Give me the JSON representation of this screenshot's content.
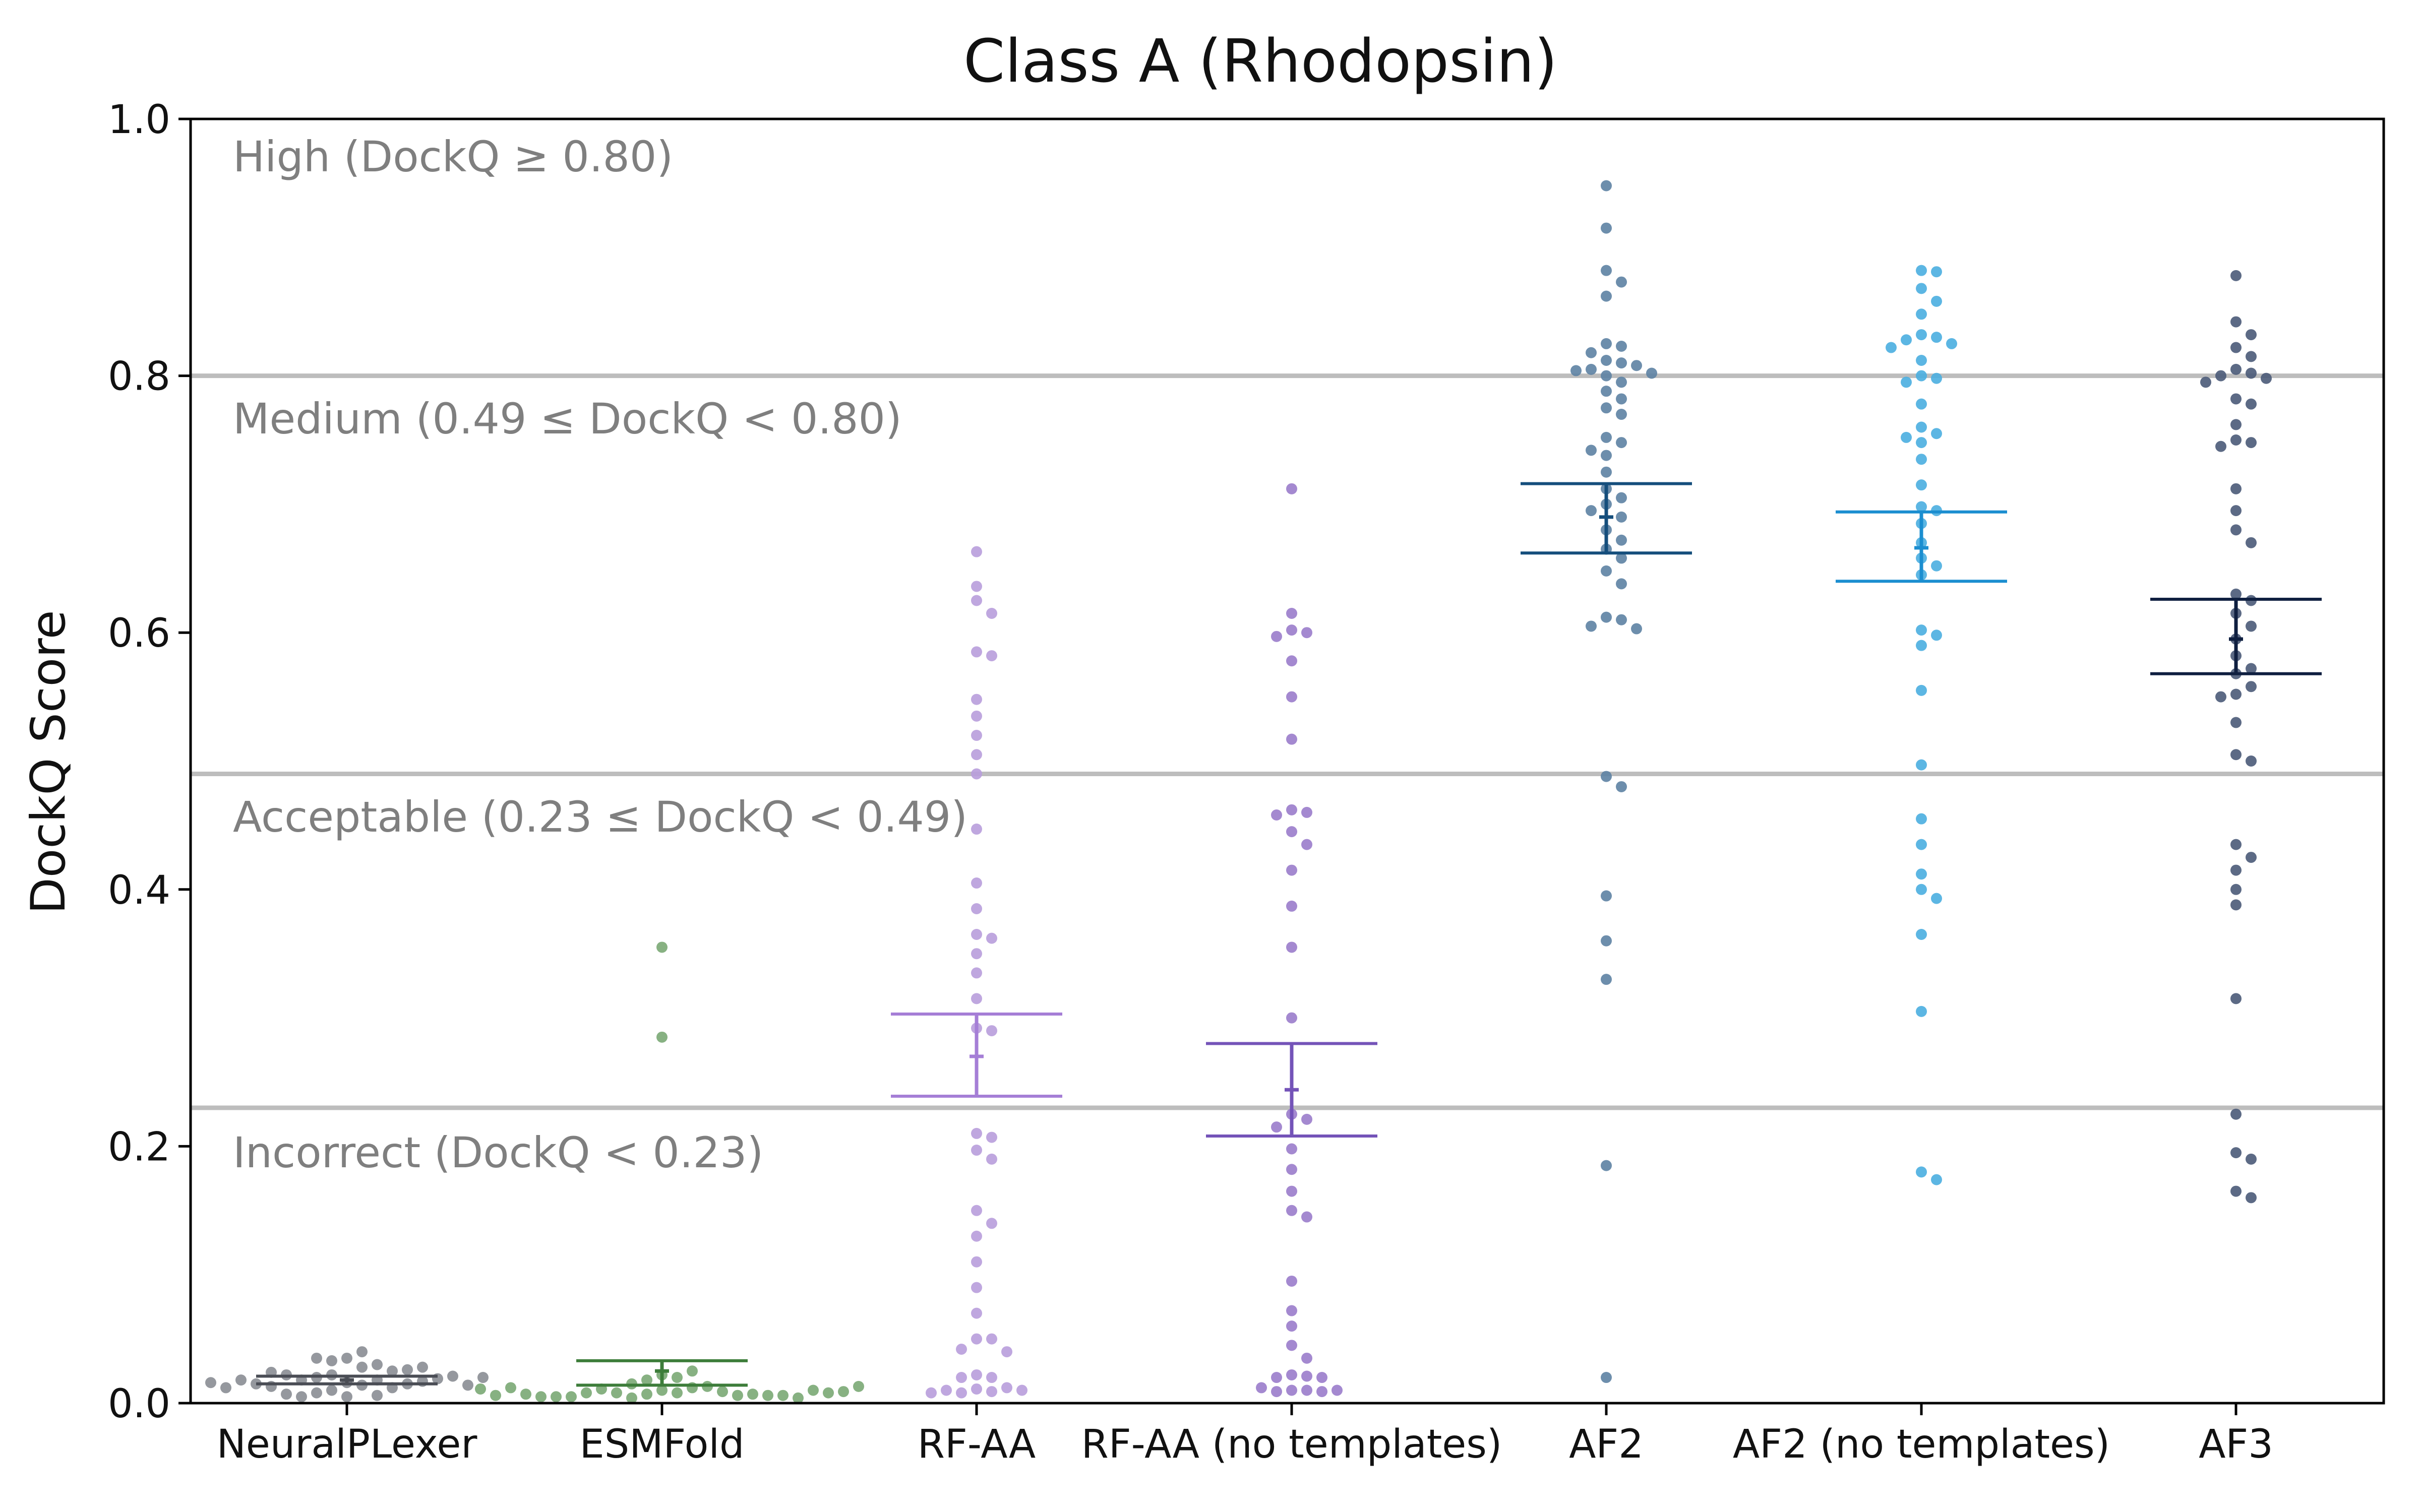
{
  "chart_data": {
    "type": "scatter",
    "title": "Class A (Rhodopsin)",
    "ylabel": "DockQ Score",
    "xlabel": "",
    "ylim": [
      0.0,
      1.0
    ],
    "yticks": [
      "0.0",
      "0.2",
      "0.4",
      "0.6",
      "0.8",
      "1.0"
    ],
    "grid": false,
    "thresholds": [
      {
        "value": 0.8,
        "label": "High (DockQ ≥ 0.80)"
      },
      {
        "value": 0.49,
        "label": "Medium (0.49 ≤ DockQ < 0.80)"
      },
      {
        "value": 0.23,
        "label": "Acceptable (0.23 ≤ DockQ < 0.49)"
      },
      {
        "label": "Incorrect (DockQ < 0.23)"
      }
    ],
    "categories": [
      "NeuralPLexer",
      "ESMFold",
      "RF-AA",
      "RF-AA (no templates)",
      "AF2",
      "AF2 (no templates)",
      "AF3"
    ],
    "series": [
      {
        "color": "#8a8d94",
        "mean": 0.018,
        "ci": [
          0.015,
          0.021
        ],
        "values": [
          0.016,
          0.014,
          0.022,
          0.018,
          0.035,
          0.028,
          0.02,
          0.012,
          0.025,
          0.018,
          0.04,
          0.03,
          0.015,
          0.022,
          0.01,
          0.017,
          0.033,
          0.026,
          0.013,
          0.019,
          0.005,
          0.024,
          0.035,
          0.015,
          0.008,
          0.021,
          0.006,
          0.028,
          0.018,
          0.005,
          0.014,
          0.012,
          0.02,
          0.007,
          0.016
        ]
      },
      {
        "color": "#7aa874",
        "mean": 0.025,
        "ci": [
          0.014,
          0.033
        ],
        "values": [
          0.355,
          0.285,
          0.022,
          0.02,
          0.018,
          0.025,
          0.015,
          0.012,
          0.01,
          0.008,
          0.013,
          0.008,
          0.009,
          0.007,
          0.011,
          0.006,
          0.008,
          0.007,
          0.005,
          0.006,
          0.005,
          0.004,
          0.006,
          0.005,
          0.004,
          0.007,
          0.01,
          0.012,
          0.008,
          0.006,
          0.009,
          0.011,
          0.013
        ]
      },
      {
        "color": "#b89ddb",
        "mean": 0.27,
        "ci": [
          0.239,
          0.303
        ],
        "values": [
          0.663,
          0.636,
          0.625,
          0.615,
          0.585,
          0.582,
          0.548,
          0.535,
          0.52,
          0.505,
          0.49,
          0.447,
          0.405,
          0.385,
          0.365,
          0.362,
          0.35,
          0.335,
          0.315,
          0.292,
          0.29,
          0.21,
          0.207,
          0.197,
          0.19,
          0.15,
          0.14,
          0.13,
          0.11,
          0.09,
          0.07,
          0.05,
          0.05,
          0.042,
          0.04,
          0.022,
          0.02,
          0.02,
          0.012,
          0.011,
          0.01,
          0.01,
          0.009,
          0.008,
          0.008
        ]
      },
      {
        "color": "#9a7ccb",
        "mean": 0.244,
        "ci": [
          0.208,
          0.28
        ],
        "values": [
          0.712,
          0.615,
          0.602,
          0.6,
          0.597,
          0.578,
          0.55,
          0.517,
          0.462,
          0.46,
          0.458,
          0.445,
          0.435,
          0.415,
          0.387,
          0.355,
          0.3,
          0.225,
          0.221,
          0.215,
          0.198,
          0.182,
          0.165,
          0.15,
          0.145,
          0.095,
          0.072,
          0.06,
          0.045,
          0.035,
          0.022,
          0.021,
          0.02,
          0.02,
          0.012,
          0.01,
          0.01,
          0.01,
          0.009,
          0.009
        ]
      },
      {
        "color": "#5d82a3",
        "mean": 0.69,
        "ci": [
          0.662,
          0.716
        ],
        "values": [
          0.948,
          0.915,
          0.882,
          0.873,
          0.862,
          0.825,
          0.823,
          0.818,
          0.812,
          0.81,
          0.808,
          0.805,
          0.804,
          0.802,
          0.8,
          0.795,
          0.788,
          0.782,
          0.775,
          0.77,
          0.752,
          0.748,
          0.742,
          0.738,
          0.725,
          0.712,
          0.705,
          0.7,
          0.695,
          0.69,
          0.68,
          0.672,
          0.665,
          0.658,
          0.648,
          0.638,
          0.612,
          0.61,
          0.605,
          0.603,
          0.488,
          0.48,
          0.395,
          0.36,
          0.33,
          0.185,
          0.02
        ]
      },
      {
        "color": "#4aaee0",
        "mean": 0.666,
        "ci": [
          0.64,
          0.694
        ],
        "values": [
          0.882,
          0.881,
          0.868,
          0.858,
          0.848,
          0.832,
          0.83,
          0.828,
          0.825,
          0.822,
          0.812,
          0.8,
          0.798,
          0.795,
          0.778,
          0.76,
          0.755,
          0.752,
          0.748,
          0.735,
          0.715,
          0.698,
          0.695,
          0.685,
          0.67,
          0.658,
          0.652,
          0.645,
          0.602,
          0.598,
          0.59,
          0.555,
          0.497,
          0.455,
          0.435,
          0.412,
          0.4,
          0.393,
          0.365,
          0.305,
          0.18,
          0.174
        ]
      },
      {
        "color": "#4a5a78",
        "mean": 0.595,
        "ci": [
          0.568,
          0.626
        ],
        "values": [
          0.878,
          0.842,
          0.832,
          0.822,
          0.815,
          0.805,
          0.802,
          0.8,
          0.798,
          0.795,
          0.782,
          0.778,
          0.762,
          0.75,
          0.748,
          0.745,
          0.712,
          0.695,
          0.68,
          0.67,
          0.63,
          0.625,
          0.615,
          0.605,
          0.595,
          0.582,
          0.572,
          0.568,
          0.558,
          0.552,
          0.55,
          0.53,
          0.505,
          0.5,
          0.435,
          0.425,
          0.415,
          0.4,
          0.388,
          0.315,
          0.225,
          0.195,
          0.19,
          0.165,
          0.16
        ]
      }
    ],
    "ci_colors": [
      "#4a4d55",
      "#3d7d3a",
      "#a57ed6",
      "#7453b8",
      "#154e7c",
      "#1b8ed0",
      "#0f1f40"
    ]
  }
}
